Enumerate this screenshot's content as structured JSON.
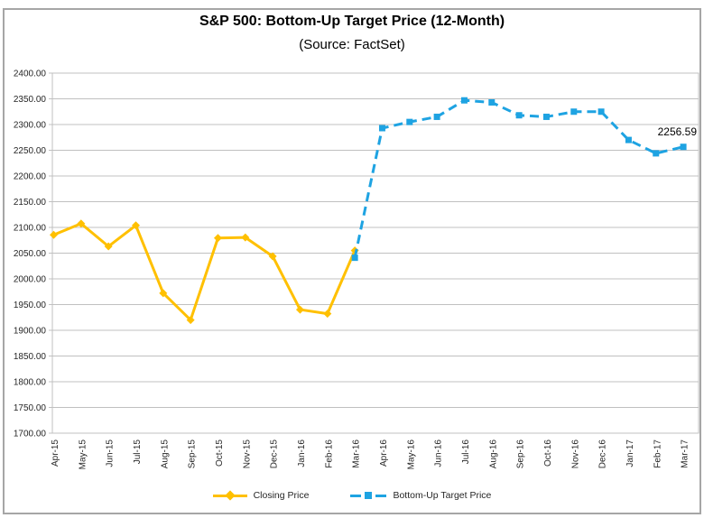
{
  "window": {
    "background": "#ffffff",
    "border_color": "#a6a6a6"
  },
  "chart_data": {
    "type": "line",
    "title": "S&P 500: Bottom-Up Target Price (12-Month)",
    "subtitle": "(Source: FactSet)",
    "xlabel": "",
    "ylabel": "",
    "categories": [
      "Apr-15",
      "May-15",
      "Jun-15",
      "Jul-15",
      "Aug-15",
      "Sep-15",
      "Oct-15",
      "Nov-15",
      "Dec-15",
      "Jan-16",
      "Feb-16",
      "Mar-16",
      "Apr-16",
      "May-16",
      "Jun-16",
      "Jul-16",
      "Aug-16",
      "Sep-16",
      "Oct-16",
      "Nov-16",
      "Dec-16",
      "Jan-17",
      "Feb-17",
      "Mar-17"
    ],
    "series": [
      {
        "name": "Closing Price",
        "color": "#FFC000",
        "line_style": "solid",
        "marker": "diamond",
        "values": [
          2085.51,
          2107.39,
          2063.11,
          2103.84,
          1972.18,
          1920.03,
          2079.36,
          2080.41,
          2043.94,
          1940.24,
          1932.23,
          2055.01,
          null,
          null,
          null,
          null,
          null,
          null,
          null,
          null,
          null,
          null,
          null,
          null
        ]
      },
      {
        "name": "Bottom-Up Target Price",
        "color": "#1EA3E2",
        "line_style": "dashed",
        "marker": "square",
        "values": [
          null,
          null,
          null,
          null,
          null,
          null,
          null,
          null,
          null,
          null,
          null,
          2041,
          2293,
          2305,
          2315,
          2347,
          2343,
          2318,
          2315,
          2325,
          2325,
          2270,
          2244,
          2256.59
        ]
      }
    ],
    "ylim": [
      1700,
      2400
    ],
    "ytick_step": 50,
    "ytick_decimals": 2,
    "grid": "horizontal",
    "gridline_color": "#c0c0c0",
    "axis_text_color": "#262626",
    "legend_position": "bottom",
    "annotation": {
      "text": "2256.59",
      "series": "Bottom-Up Target Price",
      "category": "Mar-17"
    }
  }
}
